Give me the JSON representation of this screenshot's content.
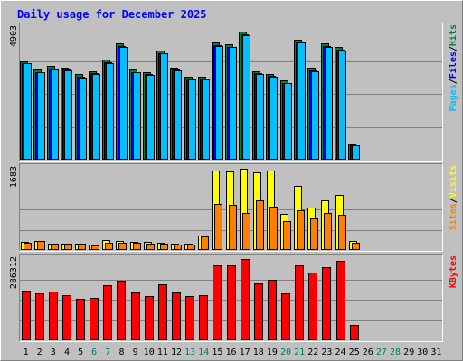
{
  "chart_data": {
    "type": "bar",
    "title": "Daily usage for December 2025",
    "x": [
      "1",
      "2",
      "3",
      "4",
      "5",
      "6",
      "7",
      "8",
      "9",
      "10",
      "11",
      "12",
      "13",
      "14",
      "15",
      "16",
      "17",
      "18",
      "19",
      "20",
      "21",
      "22",
      "23",
      "24",
      "25",
      "26",
      "27",
      "28",
      "29",
      "30",
      "31"
    ],
    "weekend_days": [
      "6",
      "7",
      "13",
      "14",
      "20",
      "21",
      "27",
      "28"
    ],
    "panels": [
      {
        "name": "hits_files_pages",
        "ymax_label": "4903",
        "ylim": [
          0,
          4903
        ],
        "legend": [
          {
            "text": "Pages",
            "color": "#00c0ff"
          },
          {
            "text": "/",
            "color": "#000000"
          },
          {
            "text": "Files",
            "color": "#0000ff"
          },
          {
            "text": "/",
            "color": "#000000"
          },
          {
            "text": "Hits",
            "color": "#008040"
          }
        ],
        "series": [
          {
            "name": "Hits",
            "color": "#008040",
            "values": [
              3674,
              3365,
              3486,
              3426,
              3177,
              3306,
              3723,
              4319,
              3350,
              3267,
              4068,
              3426,
              3096,
              3105,
              4349,
              4314,
              4783,
              3306,
              3198,
              2952,
              4481,
              3415,
              4319,
              4181,
              576,
              0,
              0,
              0,
              0,
              0,
              0
            ]
          },
          {
            "name": "Files",
            "color": "#0000ff",
            "values": [
              3598,
              3265,
              3386,
              3346,
              3087,
              3216,
              3623,
              4219,
              3270,
              3187,
              3968,
              3346,
              3016,
              3025,
              4249,
              4214,
              4663,
              3216,
              3108,
              2862,
              4381,
              3315,
              4219,
              4091,
              546,
              0,
              0,
              0,
              0,
              0,
              0
            ]
          },
          {
            "name": "Pages",
            "color": "#00c0ff",
            "values": [
              3578,
              3244,
              3366,
              3325,
              3066,
              3195,
              3602,
              4198,
              3249,
              3166,
              3947,
              3325,
              2995,
              3005,
              4228,
              4194,
              4642,
              3195,
              3087,
              2842,
              4360,
              3294,
              4198,
              4071,
              535,
              0,
              0,
              0,
              0,
              0,
              0
            ]
          }
        ]
      },
      {
        "name": "visits_sites",
        "ymax_label": "1683",
        "ylim": [
          0,
          1683
        ],
        "legend": [
          {
            "text": "Sites",
            "color": "#ff8000"
          },
          {
            "text": "/",
            "color": "#000000"
          },
          {
            "text": "Visits",
            "color": "#ffff00"
          }
        ],
        "series": [
          {
            "name": "Visits",
            "color": "#ffff00",
            "values": [
              170,
              194,
              140,
              136,
              140,
              110,
              206,
              194,
              176,
              164,
              152,
              128,
              128,
              304,
              1640,
              1628,
              1683,
              1604,
              1640,
              740,
              1336,
              876,
              1022,
              1133,
              194,
              0,
              0,
              0,
              0,
              0,
              0
            ]
          },
          {
            "name": "Sites",
            "color": "#ff8000",
            "values": [
              158,
              182,
              128,
              122,
              128,
              98,
              146,
              156,
              152,
              140,
              128,
              116,
              116,
              284,
              950,
              932,
              761,
              1033,
              906,
              607,
              826,
              661,
              773,
              720,
              146,
              0,
              0,
              0,
              0,
              0,
              0
            ]
          }
        ]
      },
      {
        "name": "kbytes",
        "ymax_label": "286312",
        "ylim": [
          0,
          286312
        ],
        "legend": [
          {
            "text": "KBytes",
            "color": "#ff0000"
          }
        ],
        "series": [
          {
            "name": "KBytes",
            "color": "#ff0000",
            "values": [
              174900,
              165000,
              170800,
              160000,
              146500,
              148200,
              195000,
              209800,
              168400,
              157000,
              197800,
              169800,
              156300,
              158200,
              262800,
              265600,
              286312,
              199300,
              214700,
              163900,
              265200,
              239900,
              257800,
              279300,
              54200,
              0,
              0,
              0,
              0,
              0,
              0
            ]
          }
        ]
      }
    ]
  },
  "colors": {
    "background": "#c0c0c0",
    "border_light": "#ffffff",
    "border_dark": "#808080",
    "title": "#0000ff",
    "weekday_label": "#000000",
    "weekend_label": "#00805a"
  }
}
